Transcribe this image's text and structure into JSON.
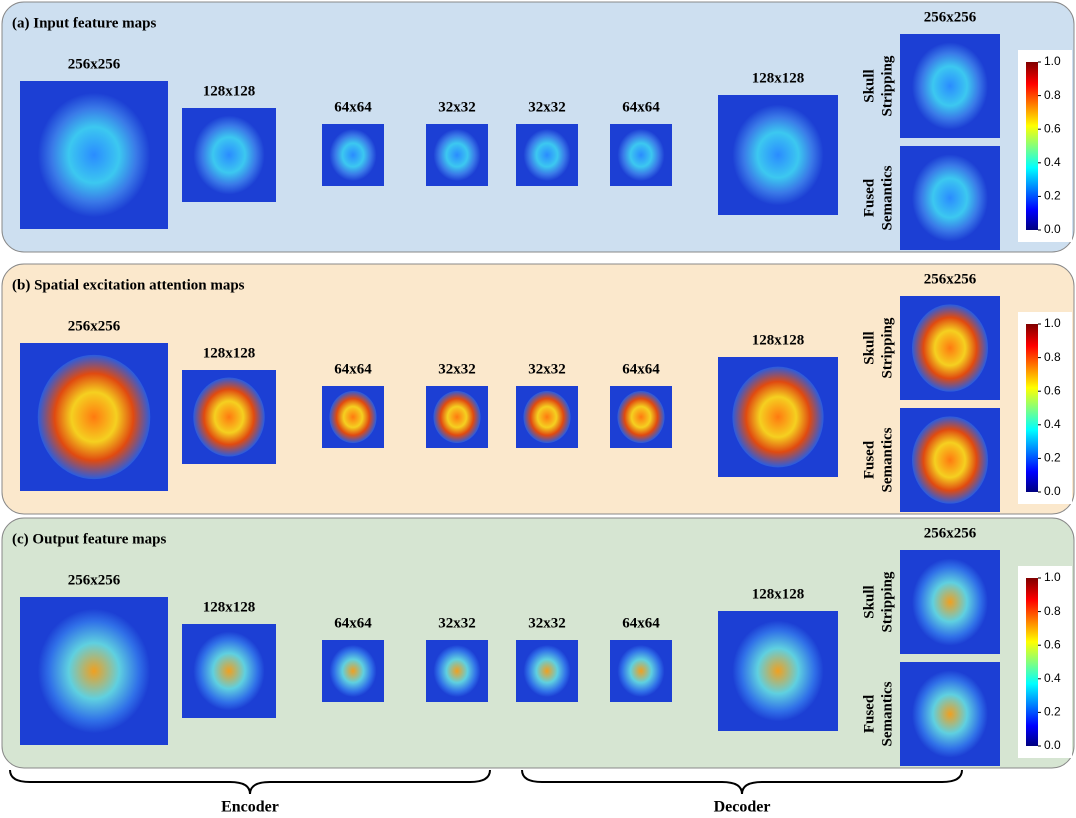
{
  "panels": [
    {
      "title": "(a) Input feature maps",
      "sizes": [
        "256x256",
        "128x128",
        "64x64",
        "32x32",
        "32x32",
        "64x64",
        "128x128"
      ],
      "side_size": "256x256",
      "side_labels": [
        [
          "Skull",
          "Stripping"
        ],
        [
          "Fused",
          "Semantics"
        ]
      ],
      "colorbar_ticks": [
        "1.0",
        "0.8",
        "0.6",
        "0.4",
        "0.2",
        "0.0"
      ]
    },
    {
      "title": "(b) Spatial excitation attention maps",
      "sizes": [
        "256x256",
        "128x128",
        "64x64",
        "32x32",
        "32x32",
        "64x64",
        "128x128"
      ],
      "side_size": "256x256",
      "side_labels": [
        [
          "Skull",
          "Stripping"
        ],
        [
          "Fused",
          "Semantics"
        ]
      ],
      "colorbar_ticks": [
        "1.0",
        "0.8",
        "0.6",
        "0.4",
        "0.2",
        "0.0"
      ]
    },
    {
      "title": "(c) Output feature maps",
      "sizes": [
        "256x256",
        "128x128",
        "64x64",
        "32x32",
        "32x32",
        "64x64",
        "128x128"
      ],
      "side_size": "256x256",
      "side_labels": [
        [
          "Skull",
          "Stripping"
        ],
        [
          "Fused",
          "Semantics"
        ]
      ],
      "colorbar_ticks": [
        "1.0",
        "0.8",
        "0.6",
        "0.4",
        "0.2",
        "0.0"
      ]
    }
  ],
  "footer": {
    "encoder": "Encoder",
    "decoder": "Decoder"
  }
}
